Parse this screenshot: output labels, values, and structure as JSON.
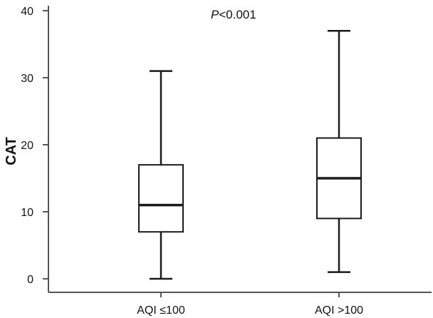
{
  "chart_data": {
    "type": "box",
    "title": "",
    "xlabel": "",
    "ylabel": "CAT",
    "ylim": [
      0,
      40
    ],
    "yticks": [
      0,
      10,
      20,
      30,
      40
    ],
    "grid": false,
    "annotation": {
      "italic_part": "P",
      "rest": "<0.001"
    },
    "categories": [
      "AQI ≤100",
      "AQI >100"
    ],
    "boxes": [
      {
        "category": "AQI ≤100",
        "min": 0,
        "q1": 7,
        "median": 11,
        "q3": 17,
        "max": 31
      },
      {
        "category": "AQI >100",
        "min": 1,
        "q1": 9,
        "median": 15,
        "q3": 21,
        "max": 37
      }
    ],
    "colors": {
      "stroke": "#1a1a1a",
      "box_fill": "#ffffff",
      "axis": "#555555"
    }
  }
}
